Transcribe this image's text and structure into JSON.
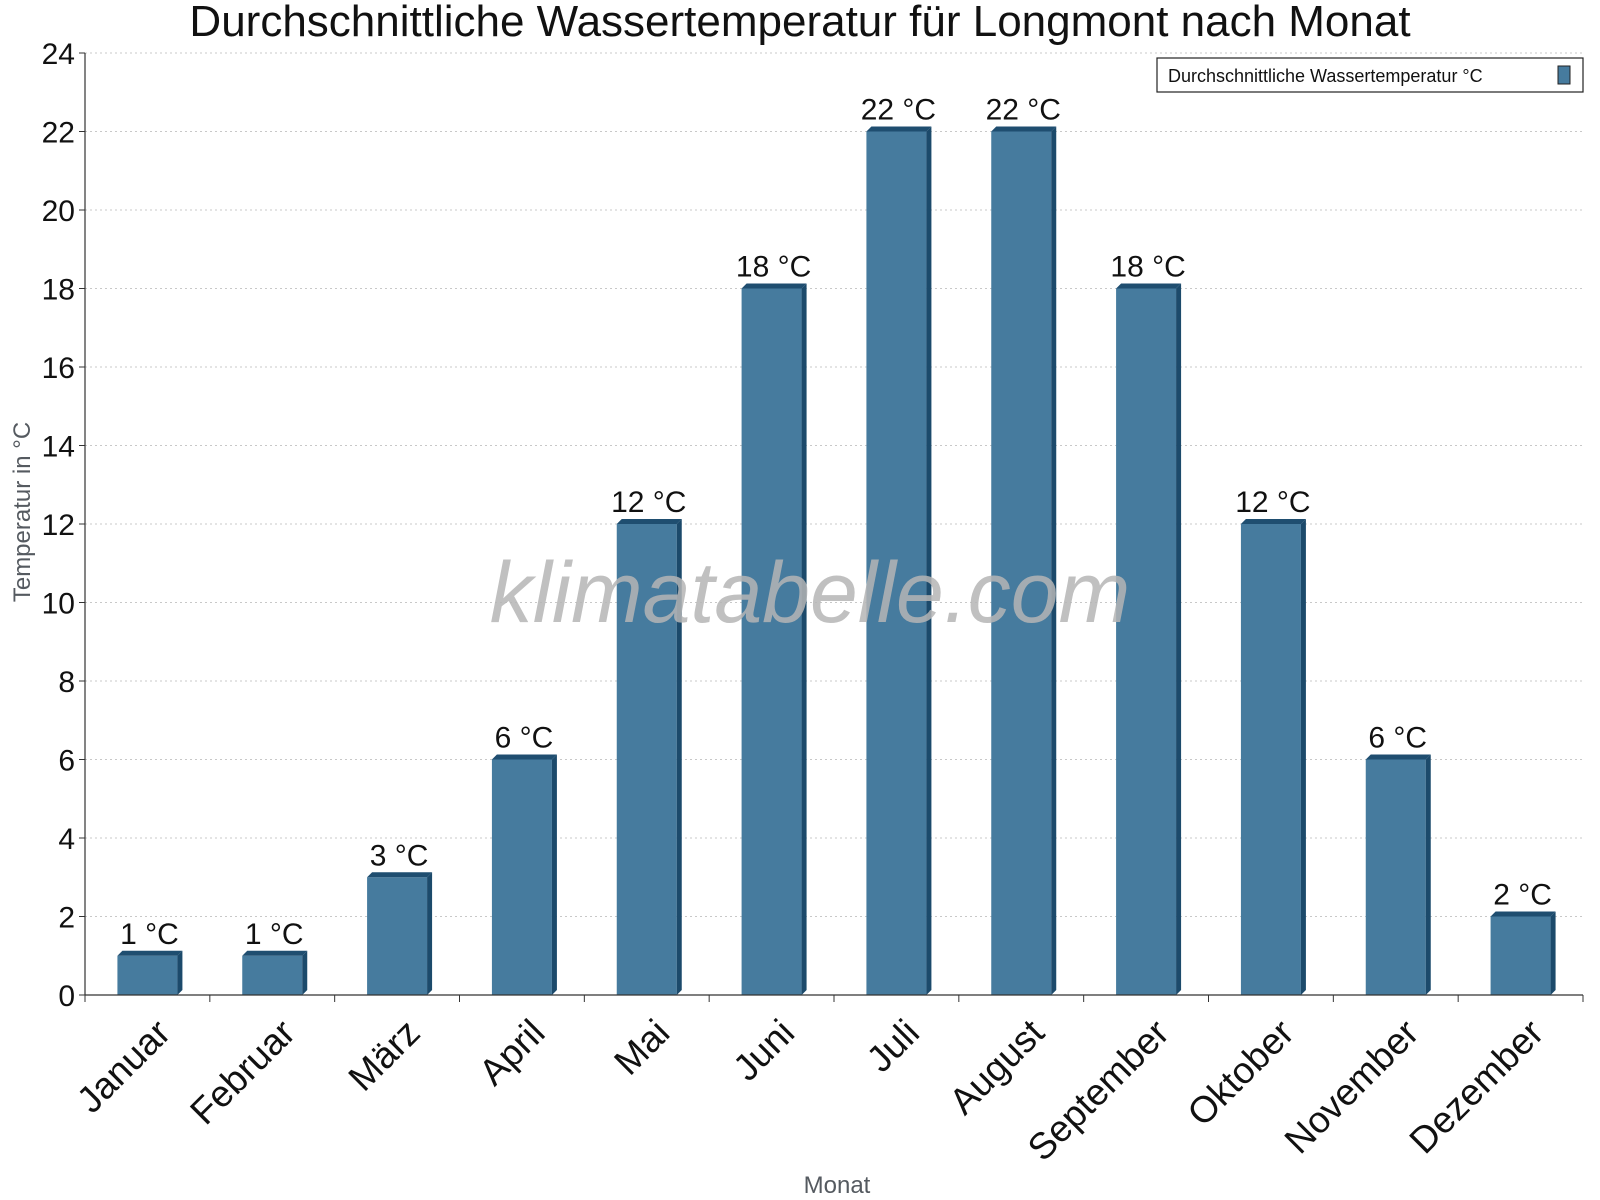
{
  "watermark": "klimatabelle.com",
  "colors": {
    "bar_front": "#467b9e",
    "bar_side": "#1c4a6b",
    "bar_top": "#1f4e70",
    "grid": "#c8c8c8"
  },
  "chart_data": {
    "type": "bar",
    "title": "Durchschnittliche Wassertemperatur für Longmont nach Monat",
    "xlabel": "Monat",
    "ylabel": "Temperatur in °C",
    "ylim": [
      0,
      24
    ],
    "yticks": [
      "0",
      "2",
      "4",
      "6",
      "8",
      "10",
      "12",
      "14",
      "16",
      "18",
      "20",
      "22",
      "24"
    ],
    "grid": true,
    "legend_position": "top-right",
    "categories": [
      "Januar",
      "Februar",
      "März",
      "April",
      "Mai",
      "Juni",
      "Juli",
      "August",
      "September",
      "Oktober",
      "November",
      "Dezember"
    ],
    "series": [
      {
        "name": "Durchschnittliche Wassertemperatur °C",
        "values": [
          1,
          1,
          3,
          6,
          12,
          18,
          22,
          22,
          18,
          12,
          6,
          2
        ],
        "labels": [
          "1 °C",
          "1 °C",
          "3 °C",
          "6 °C",
          "12 °C",
          "18 °C",
          "22 °C",
          "22 °C",
          "18 °C",
          "12 °C",
          "6 °C",
          "2 °C"
        ]
      }
    ]
  }
}
